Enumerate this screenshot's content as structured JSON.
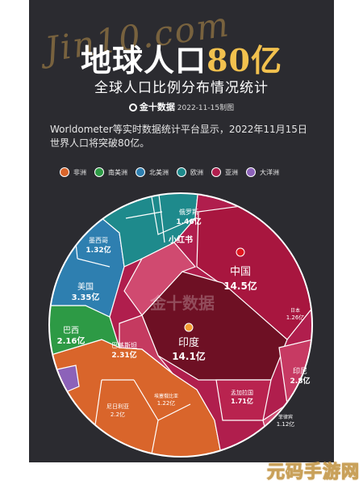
{
  "header": {
    "script_text": "Jin10.com",
    "title_main": "地球人口",
    "title_num": "80亿",
    "subtitle": "全球人口比例分布情况统计",
    "source_brand": "金十数据",
    "source_date": "2022-11-15制图"
  },
  "intro": "Worldometer等实时数据统计平台显示，2022年11月15日世界人口将突破80亿。",
  "legend": [
    {
      "label": "非洲",
      "color": "#d9652b"
    },
    {
      "label": "南美洲",
      "color": "#2d9a45"
    },
    {
      "label": "北美洲",
      "color": "#2e7fb0"
    },
    {
      "label": "欧洲",
      "color": "#1e8a8c"
    },
    {
      "label": "亚洲",
      "color": "#b01e4d"
    },
    {
      "label": "大洋洲",
      "color": "#8c62b9"
    }
  ],
  "overlay_text": {
    "xiaohongshu": "小红书",
    "logo_watermark": "金十数据"
  },
  "chart_data": {
    "type": "voronoi-treemap",
    "title": "地球人口80亿",
    "unit": "亿",
    "regions": [
      {
        "name": "亚洲",
        "color": "#b01e4d"
      },
      {
        "name": "非洲",
        "color": "#d9652b"
      },
      {
        "name": "南美洲",
        "color": "#2d9a45"
      },
      {
        "name": "北美洲",
        "color": "#2e7fb0"
      },
      {
        "name": "欧洲",
        "color": "#1e8a8c"
      },
      {
        "name": "大洋洲",
        "color": "#8c62b9"
      }
    ],
    "labeled_countries": [
      {
        "name": "中国",
        "value_label": "14.5亿",
        "value": 14.5,
        "region": "亚洲"
      },
      {
        "name": "印度",
        "value_label": "14.1亿",
        "value": 14.1,
        "region": "亚洲"
      },
      {
        "name": "美国",
        "value_label": "3.35亿",
        "value": 3.35,
        "region": "北美洲"
      },
      {
        "name": "巴基斯坦",
        "value_label": "2.31亿",
        "value": 2.31,
        "region": "亚洲"
      },
      {
        "name": "巴西",
        "value_label": "2.16亿",
        "value": 2.16,
        "region": "南美洲"
      },
      {
        "name": "印尼",
        "value_label": "2.8亿",
        "value": 2.8,
        "region": "亚洲"
      },
      {
        "name": "俄罗斯",
        "value_label": "1.46亿",
        "value": 1.46,
        "region": "欧洲"
      },
      {
        "name": "墨西哥",
        "value_label": "1.32亿",
        "value": 1.32,
        "region": "北美洲"
      },
      {
        "name": "孟加拉国",
        "value_label": "1.71亿",
        "value": 1.71,
        "region": "亚洲"
      },
      {
        "name": "日本",
        "value_label": "1.26亿",
        "value": 1.26,
        "region": "亚洲"
      },
      {
        "name": "菲律宾",
        "value_label": "1.12亿",
        "value": 1.12,
        "region": "亚洲"
      },
      {
        "name": "尼日利亚",
        "value_label": "2.2亿",
        "value": 2.2,
        "region": "非洲"
      },
      {
        "name": "埃塞俄比亚",
        "value_label": "1.22亿",
        "value": 1.22,
        "region": "非洲"
      }
    ]
  }
}
